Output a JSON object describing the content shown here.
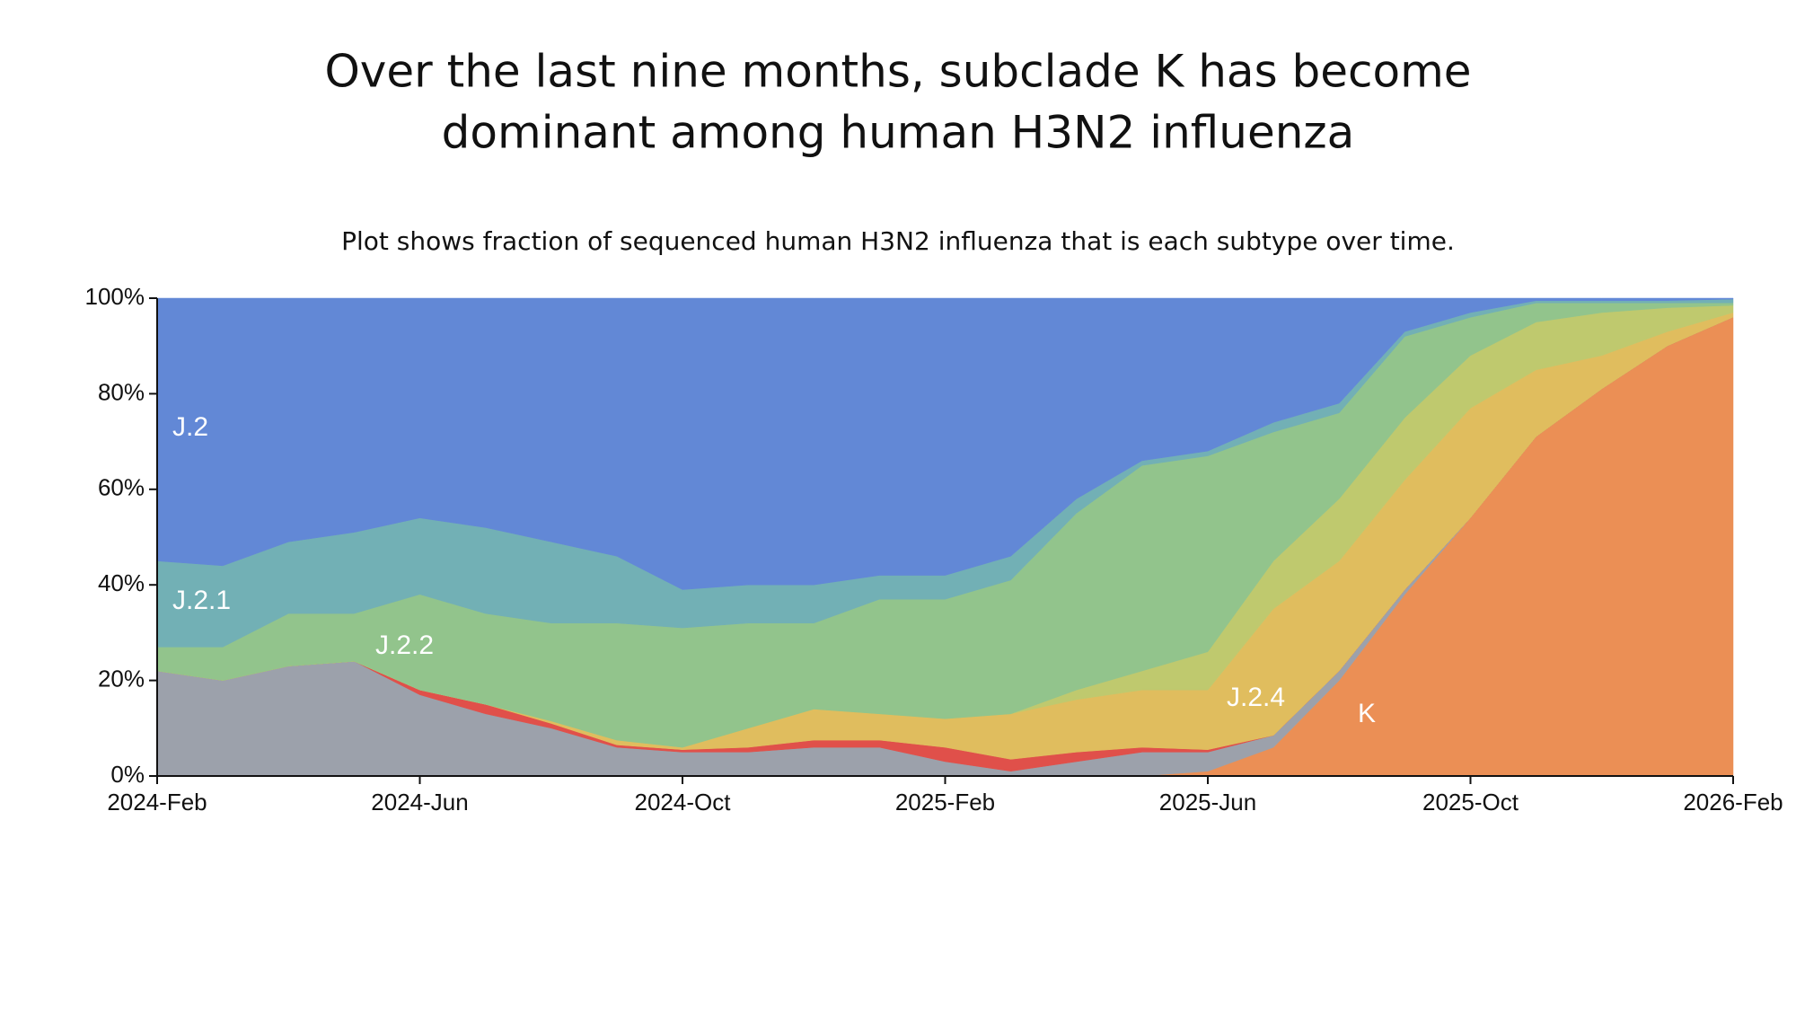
{
  "chart_data": {
    "type": "stacked-area",
    "title": [
      "Over the last nine months, subclade K has become",
      "dominant among human H3N2 influenza"
    ],
    "subtitle": "Plot shows fraction of sequenced human H3N2 influenza that is each subtype over time.",
    "x": [
      "2024-Feb",
      "2024-Mar",
      "2024-Apr",
      "2024-May",
      "2024-Jun",
      "2024-Jul",
      "2024-Aug",
      "2024-Sep",
      "2024-Oct",
      "2024-Nov",
      "2024-Dec",
      "2025-Jan",
      "2025-Feb",
      "2025-Mar",
      "2025-Apr",
      "2025-May",
      "2025-Jun",
      "2025-Jul",
      "2025-Aug",
      "2025-Sep",
      "2025-Oct",
      "2025-Nov",
      "2025-Dec",
      "2026-Jan",
      "2026-Feb"
    ],
    "xticks": [
      "2024-Feb",
      "2024-Jun",
      "2024-Oct",
      "2025-Feb",
      "2025-Jun",
      "2025-Oct",
      "2026-Feb"
    ],
    "ylim": [
      0,
      100
    ],
    "yticks": [
      {
        "value": 0,
        "label": "0%"
      },
      {
        "value": 20,
        "label": "20%"
      },
      {
        "value": 40,
        "label": "40%"
      },
      {
        "value": 60,
        "label": "60%"
      },
      {
        "value": 80,
        "label": "80%"
      },
      {
        "value": 100,
        "label": "100%"
      }
    ],
    "series": [
      {
        "name": "K",
        "color": "#eb8f55",
        "values": [
          0,
          0,
          0,
          0,
          0,
          0,
          0,
          0,
          0,
          0,
          0,
          0,
          0,
          0,
          0,
          0,
          1,
          6,
          20,
          38,
          54,
          71,
          81,
          90,
          96
        ]
      },
      {
        "color": "#9ca1ab",
        "values": [
          22,
          20,
          23,
          24,
          17,
          13,
          10,
          6,
          5,
          5,
          6,
          6,
          3,
          1,
          3,
          5,
          4,
          2.5,
          2,
          1,
          0,
          0,
          0,
          0,
          0
        ]
      },
      {
        "color": "#e0504a",
        "values": [
          0,
          0,
          0,
          0,
          1,
          2,
          1,
          0.5,
          0.5,
          1,
          1.5,
          1.5,
          3,
          2.5,
          2,
          1,
          0.5,
          0,
          0,
          0,
          0,
          0,
          0,
          0,
          0
        ]
      },
      {
        "name": "J.2.4",
        "color": "#e0bd5e",
        "values": [
          0,
          0,
          0,
          0,
          0,
          0,
          0.5,
          1,
          0.5,
          4,
          6.5,
          5.5,
          6,
          9.5,
          11,
          12,
          12.5,
          26.5,
          23,
          23,
          23,
          14,
          7,
          3,
          1
        ]
      },
      {
        "color": "#bfc96e",
        "values": [
          0,
          0,
          0,
          0,
          0,
          0,
          0,
          0,
          0,
          0,
          0,
          0,
          0,
          0,
          2,
          4,
          8,
          10,
          13,
          13,
          11,
          10,
          9,
          5,
          1.5
        ]
      },
      {
        "name": "J.2.2",
        "color": "#92c48c",
        "values": [
          5,
          7,
          11,
          10,
          20,
          19,
          20.5,
          24.5,
          25,
          22,
          18,
          24,
          25,
          28,
          37,
          43,
          41,
          27,
          18,
          17,
          8,
          4,
          2,
          1,
          0.5
        ]
      },
      {
        "name": "J.2.1",
        "color": "#72b0b5",
        "values": [
          18,
          17,
          15,
          17,
          16,
          18,
          17,
          14,
          8,
          8,
          8,
          5,
          5,
          5,
          3,
          1,
          1,
          2,
          2,
          1,
          1,
          0.5,
          0.5,
          0.5,
          0.8
        ]
      },
      {
        "name": "J.2",
        "color": "#6288d6",
        "values": [
          55,
          56,
          51,
          49,
          46,
          48,
          51,
          54,
          61,
          60,
          60,
          58,
          58,
          54,
          42,
          34,
          32,
          26,
          22,
          7,
          3,
          0.5,
          0.5,
          0.5,
          0.2
        ]
      }
    ]
  }
}
